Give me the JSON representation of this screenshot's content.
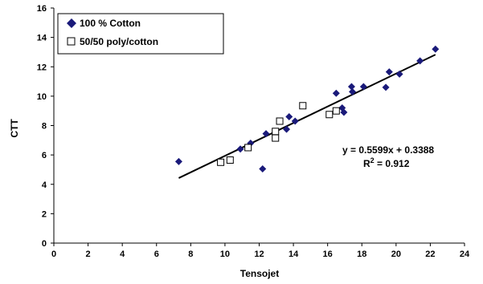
{
  "chart_data": {
    "type": "scatter",
    "xlabel": "Tensojet",
    "ylabel": "CTT",
    "xlim": [
      0,
      24
    ],
    "ylim": [
      0,
      16
    ],
    "x_ticks": [
      0,
      2,
      4,
      6,
      8,
      10,
      12,
      14,
      16,
      18,
      20,
      22,
      24
    ],
    "y_ticks": [
      0,
      2,
      4,
      6,
      8,
      10,
      12,
      14,
      16
    ],
    "grid": false,
    "legend_position": "top-left",
    "series": [
      {
        "name": "100 % Cotton",
        "marker": "diamond",
        "color": "#1a1a7a",
        "points": [
          [
            7.3,
            5.55
          ],
          [
            10.9,
            6.4
          ],
          [
            11.5,
            6.8
          ],
          [
            12.2,
            5.05
          ],
          [
            12.4,
            7.45
          ],
          [
            13.6,
            7.75
          ],
          [
            13.75,
            8.6
          ],
          [
            14.1,
            8.3
          ],
          [
            16.5,
            10.2
          ],
          [
            16.85,
            9.2
          ],
          [
            16.95,
            8.9
          ],
          [
            17.4,
            10.65
          ],
          [
            17.45,
            10.3
          ],
          [
            18.1,
            10.65
          ],
          [
            19.4,
            10.6
          ],
          [
            19.6,
            11.65
          ],
          [
            20.2,
            11.5
          ],
          [
            21.4,
            12.4
          ],
          [
            22.3,
            13.2
          ]
        ]
      },
      {
        "name": "50/50 poly/cotton",
        "marker": "square-open",
        "color": "#000000",
        "points": [
          [
            9.75,
            5.5
          ],
          [
            10.3,
            5.65
          ],
          [
            11.35,
            6.5
          ],
          [
            12.95,
            7.15
          ],
          [
            12.95,
            7.6
          ],
          [
            13.2,
            8.3
          ],
          [
            14.55,
            9.35
          ],
          [
            16.1,
            8.75
          ],
          [
            16.5,
            9.0
          ]
        ]
      }
    ],
    "trendline": {
      "slope": 0.5599,
      "intercept": 0.3388,
      "x_range": [
        7.3,
        22.3
      ]
    },
    "annotations": {
      "equation": "y = 0.5599x + 0.3388",
      "r2_prefix": "R",
      "r2_sup": "2",
      "r2_suffix": " = 0.912"
    }
  }
}
